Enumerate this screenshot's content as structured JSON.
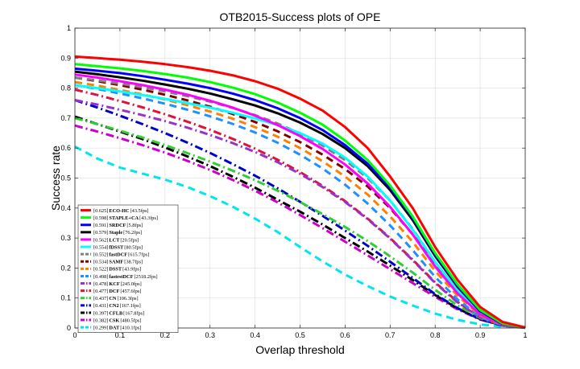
{
  "chart_data": {
    "type": "line",
    "title": "OTB2015-Success plots of OPE",
    "xlabel": "Overlap threshold",
    "ylabel": "Success rate",
    "xlim": [
      0,
      1
    ],
    "ylim": [
      0,
      1
    ],
    "grid": true,
    "legend_position": "bottom-left",
    "xticks": [
      "0",
      "0.1",
      "0.2",
      "0.3",
      "0.4",
      "0.5",
      "0.6",
      "0.7",
      "0.8",
      "0.9",
      "1"
    ],
    "yticks": [
      "0",
      "0.1",
      "0.2",
      "0.3",
      "0.4",
      "0.5",
      "0.6",
      "0.7",
      "0.8",
      "0.9",
      "1"
    ],
    "x": [
      0,
      0.05,
      0.1,
      0.15,
      0.2,
      0.25,
      0.3,
      0.35,
      0.4,
      0.45,
      0.5,
      0.55,
      0.6,
      0.65,
      0.7,
      0.75,
      0.8,
      0.85,
      0.9,
      0.95,
      1.0
    ],
    "series": [
      {
        "score": "[0.625]",
        "name": "ECO-HC",
        "fps": "[43.5fps]",
        "color": "#ff0000",
        "dash": "solid",
        "values": [
          0.905,
          0.9,
          0.895,
          0.888,
          0.88,
          0.87,
          0.858,
          0.843,
          0.823,
          0.798,
          0.765,
          0.725,
          0.67,
          0.6,
          0.505,
          0.4,
          0.27,
          0.16,
          0.07,
          0.02,
          0.002
        ]
      },
      {
        "score": "[0.598]",
        "name": "STAPLE+CA",
        "fps": "[43.3fps]",
        "color": "#00ff00",
        "dash": "solid",
        "values": [
          0.88,
          0.873,
          0.866,
          0.857,
          0.847,
          0.835,
          0.82,
          0.802,
          0.78,
          0.752,
          0.718,
          0.678,
          0.625,
          0.56,
          0.475,
          0.372,
          0.25,
          0.145,
          0.06,
          0.015,
          0.001
        ]
      },
      {
        "score": "[0.591]",
        "name": "SRDCF",
        "fps": "[5.8fps]",
        "color": "#0000ff",
        "dash": "solid",
        "values": [
          0.865,
          0.858,
          0.85,
          0.84,
          0.828,
          0.815,
          0.8,
          0.782,
          0.76,
          0.733,
          0.7,
          0.66,
          0.61,
          0.548,
          0.468,
          0.367,
          0.245,
          0.14,
          0.058,
          0.015,
          0.001
        ]
      },
      {
        "score": "[0.579]",
        "name": "Staple",
        "fps": "[76.2fps]",
        "color": "#000000",
        "dash": "solid",
        "values": [
          0.855,
          0.846,
          0.836,
          0.825,
          0.812,
          0.798,
          0.782,
          0.763,
          0.742,
          0.716,
          0.685,
          0.647,
          0.6,
          0.54,
          0.46,
          0.36,
          0.24,
          0.137,
          0.056,
          0.014,
          0.001
        ]
      },
      {
        "score": "[0.562]",
        "name": "LCT",
        "fps": "[20.5fps]",
        "color": "#ff00ff",
        "dash": "solid",
        "values": [
          0.845,
          0.835,
          0.823,
          0.81,
          0.795,
          0.778,
          0.758,
          0.735,
          0.708,
          0.677,
          0.64,
          0.597,
          0.545,
          0.482,
          0.404,
          0.312,
          0.205,
          0.115,
          0.045,
          0.011,
          0.001
        ]
      },
      {
        "score": "[0.554]",
        "name": "fDSST",
        "fps": "[80.5fps]",
        "color": "#00ffff",
        "dash": "solid",
        "values": [
          0.81,
          0.8,
          0.789,
          0.777,
          0.764,
          0.75,
          0.735,
          0.718,
          0.699,
          0.677,
          0.65,
          0.615,
          0.568,
          0.505,
          0.425,
          0.328,
          0.22,
          0.125,
          0.05,
          0.012,
          0.001
        ]
      },
      {
        "score": "[0.552]",
        "name": "fastDCF",
        "fps": "[615.7fps]",
        "color": "#808080",
        "dash": "dash",
        "values": [
          0.835,
          0.826,
          0.815,
          0.803,
          0.789,
          0.773,
          0.755,
          0.734,
          0.71,
          0.682,
          0.648,
          0.608,
          0.56,
          0.5,
          0.425,
          0.33,
          0.22,
          0.125,
          0.05,
          0.012,
          0.001
        ]
      },
      {
        "score": "[0.534]",
        "name": "SAMF",
        "fps": "[38.7fps]",
        "color": "#800000",
        "dash": "dash",
        "values": [
          0.835,
          0.823,
          0.81,
          0.795,
          0.778,
          0.759,
          0.738,
          0.714,
          0.687,
          0.656,
          0.62,
          0.578,
          0.53,
          0.472,
          0.4,
          0.313,
          0.21,
          0.12,
          0.048,
          0.011,
          0.001
        ]
      },
      {
        "score": "[0.522]",
        "name": "DSST",
        "fps": "[43.9fps]",
        "color": "#ff8000",
        "dash": "dash",
        "values": [
          0.82,
          0.808,
          0.794,
          0.779,
          0.762,
          0.743,
          0.722,
          0.698,
          0.67,
          0.638,
          0.6,
          0.556,
          0.505,
          0.445,
          0.372,
          0.287,
          0.19,
          0.107,
          0.042,
          0.01,
          0.001
        ]
      },
      {
        "score": "[0.498]",
        "name": "fastestDCF",
        "fps": "[2518.2fps]",
        "color": "#1e90ff",
        "dash": "dash",
        "values": [
          0.81,
          0.797,
          0.782,
          0.766,
          0.748,
          0.728,
          0.706,
          0.681,
          0.652,
          0.618,
          0.578,
          0.532,
          0.478,
          0.415,
          0.342,
          0.26,
          0.17,
          0.095,
          0.037,
          0.009,
          0.001
        ]
      },
      {
        "score": "[0.478]",
        "name": "KCF",
        "fps": "[245.0fps]",
        "color": "#9932cc",
        "dash": "dashdot",
        "values": [
          0.76,
          0.745,
          0.728,
          0.71,
          0.69,
          0.668,
          0.644,
          0.617,
          0.587,
          0.553,
          0.514,
          0.47,
          0.42,
          0.363,
          0.298,
          0.226,
          0.15,
          0.085,
          0.035,
          0.009,
          0.001
        ]
      },
      {
        "score": "[0.477]",
        "name": "DCF",
        "fps": "[457.6fps]",
        "color": "#dc143c",
        "dash": "dashdot",
        "values": [
          0.795,
          0.777,
          0.757,
          0.736,
          0.713,
          0.688,
          0.661,
          0.631,
          0.598,
          0.561,
          0.52,
          0.474,
          0.423,
          0.365,
          0.3,
          0.228,
          0.152,
          0.087,
          0.036,
          0.009,
          0.001
        ]
      },
      {
        "score": "[0.437]",
        "name": "CN",
        "fps": "[106.3fps]",
        "color": "#32cd32",
        "dash": "dashdot",
        "values": [
          0.7,
          0.68,
          0.658,
          0.635,
          0.61,
          0.583,
          0.555,
          0.525,
          0.493,
          0.458,
          0.42,
          0.38,
          0.337,
          0.29,
          0.239,
          0.185,
          0.127,
          0.075,
          0.033,
          0.009,
          0.001
        ]
      },
      {
        "score": "[0.431]",
        "name": "CN2",
        "fps": "[167.1fps]",
        "color": "#0000cd",
        "dash": "dashdot",
        "values": [
          0.76,
          0.735,
          0.708,
          0.68,
          0.65,
          0.618,
          0.584,
          0.547,
          0.508,
          0.466,
          0.421,
          0.374,
          0.325,
          0.274,
          0.221,
          0.167,
          0.113,
          0.066,
          0.029,
          0.008,
          0.001
        ]
      },
      {
        "score": "[0.397]",
        "name": "CFLB",
        "fps": "[167.8fps]",
        "color": "#000000",
        "dash": "dashdot",
        "values": [
          0.705,
          0.68,
          0.655,
          0.63,
          0.602,
          0.572,
          0.54,
          0.505,
          0.468,
          0.428,
          0.388,
          0.345,
          0.3,
          0.255,
          0.208,
          0.16,
          0.11,
          0.065,
          0.03,
          0.008,
          0.001
        ]
      },
      {
        "score": "[0.382]",
        "name": "CSK",
        "fps": "[480.5fps]",
        "color": "#cc00cc",
        "dash": "dashdot",
        "values": [
          0.675,
          0.655,
          0.633,
          0.61,
          0.585,
          0.557,
          0.527,
          0.494,
          0.458,
          0.419,
          0.377,
          0.333,
          0.288,
          0.242,
          0.196,
          0.15,
          0.104,
          0.062,
          0.028,
          0.008,
          0.001
        ]
      },
      {
        "score": "[0.299]",
        "name": "DAT",
        "fps": "[410.1fps]",
        "color": "#00e5ee",
        "dash": "dash",
        "values": [
          0.605,
          0.565,
          0.535,
          0.515,
          0.495,
          0.47,
          0.44,
          0.405,
          0.365,
          0.32,
          0.27,
          0.222,
          0.178,
          0.14,
          0.105,
          0.075,
          0.048,
          0.027,
          0.012,
          0.004,
          0.001
        ]
      }
    ]
  }
}
